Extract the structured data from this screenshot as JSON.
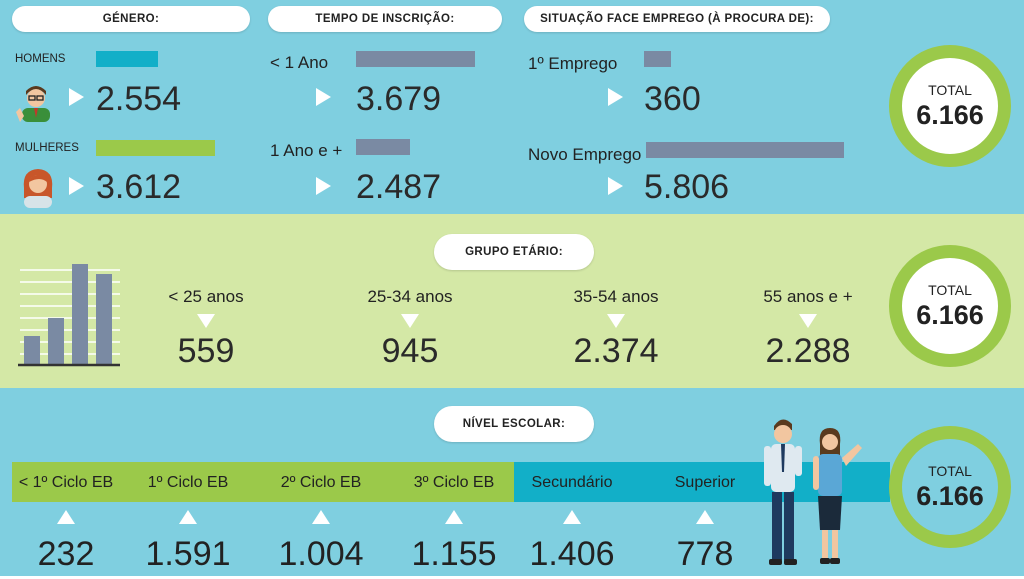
{
  "colors": {
    "blue_band": "#7fcfe0",
    "green_band": "#d4e8a6",
    "cyan_bar": "#12afc8",
    "green_bar": "#9bc94a",
    "slate_bar": "#7a8aa3",
    "ring": "#9bc94a"
  },
  "genero": {
    "title": "Género:",
    "homens": {
      "label": "Homens",
      "value": "2.554",
      "share": 0.414
    },
    "mulheres": {
      "label": "Mulheres",
      "value": "3.612",
      "share": 0.586
    }
  },
  "tempo": {
    "title": "Tempo de inscrição:",
    "a": {
      "label": "< 1 Ano",
      "value": "3.679",
      "share": 0.597
    },
    "b": {
      "label": "1 Ano e +",
      "value": "2.487",
      "share": 0.403
    }
  },
  "situacao": {
    "title": "Situação face emprego (à procura de):",
    "a": {
      "label": "1º Emprego",
      "value": "360",
      "share": 0.058
    },
    "b": {
      "label": "Novo Emprego",
      "value": "5.806",
      "share": 0.942
    }
  },
  "total_label": "TOTAL",
  "total_value": "6.166",
  "grupo": {
    "title": "Grupo etário:",
    "items": [
      {
        "label": "< 25 anos",
        "value": "559"
      },
      {
        "label": "25-34 anos",
        "value": "945"
      },
      {
        "label": "35-54 anos",
        "value": "2.374"
      },
      {
        "label": "55 anos e +",
        "value": "2.288"
      }
    ]
  },
  "nivel": {
    "title": "Nível escolar:",
    "items": [
      {
        "label": "< 1º Ciclo EB",
        "value": "232"
      },
      {
        "label": "1º Ciclo EB",
        "value": "1.591"
      },
      {
        "label": "2º Ciclo EB",
        "value": "1.004"
      },
      {
        "label": "3º Ciclo EB",
        "value": "1.155"
      },
      {
        "label": "Secundário",
        "value": "1.406"
      },
      {
        "label": "Superior",
        "value": "778"
      }
    ]
  },
  "icons": [
    "man-avatar-icon",
    "woman-avatar-icon",
    "bar-chart-icon",
    "people-illustration"
  ]
}
